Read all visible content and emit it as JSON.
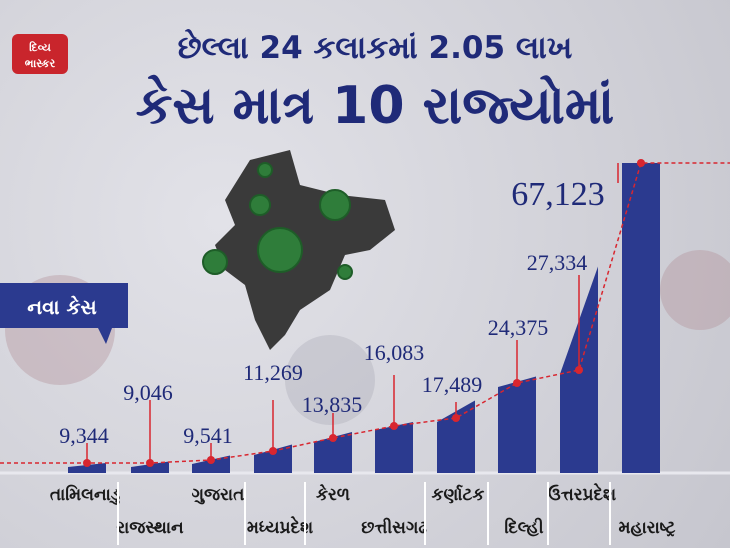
{
  "brand": {
    "logo_line1": "દિવ્ય",
    "logo_line2": "ભાસ્કર"
  },
  "headline": {
    "line1": "છેલ્લા 24 કલાકમાં 2.05 લાખ",
    "line2": "કેસ માત્ર 10 રાજ્યોમાં"
  },
  "legend_tag": "નવા કેસ",
  "colors": {
    "bar": "#2b3a8f",
    "marker": "#d8262f",
    "banner": "#2b3a8f",
    "text": "#1f2a78"
  },
  "chart_data": {
    "type": "bar",
    "title": "છેલ્લા 24 કલાકમાં 2.05 લાખ કેસ માત્ર 10 રાજ્યોમાં",
    "xlabel": "",
    "ylabel": "",
    "series": [
      {
        "name": "નવા કેસ",
        "values": [
          9344,
          9046,
          9541,
          11269,
          13835,
          16083,
          17489,
          24375,
          27334,
          67123
        ]
      }
    ],
    "categories": [
      "તામિલનાડુ",
      "રાજસ્થાન",
      "ગુજરાત",
      "મધ્યપ્રદેશ",
      "કેરળ",
      "છત્તીસગઢ",
      "કર્ણાટક",
      "દિલ્હી",
      "ઉત્તરપ્રદેશ",
      "મહારાષ્ટ્ર"
    ],
    "data_labels": [
      "9,344",
      "9,046",
      "9,541",
      "11,269",
      "13,835",
      "16,083",
      "17,489",
      "24,375",
      "27,334",
      "67,123"
    ],
    "values": [
      9344,
      9046,
      9541,
      11269,
      13835,
      16083,
      17489,
      24375,
      27334,
      67123
    ],
    "ylim": [
      0,
      67123
    ],
    "grid": false
  }
}
